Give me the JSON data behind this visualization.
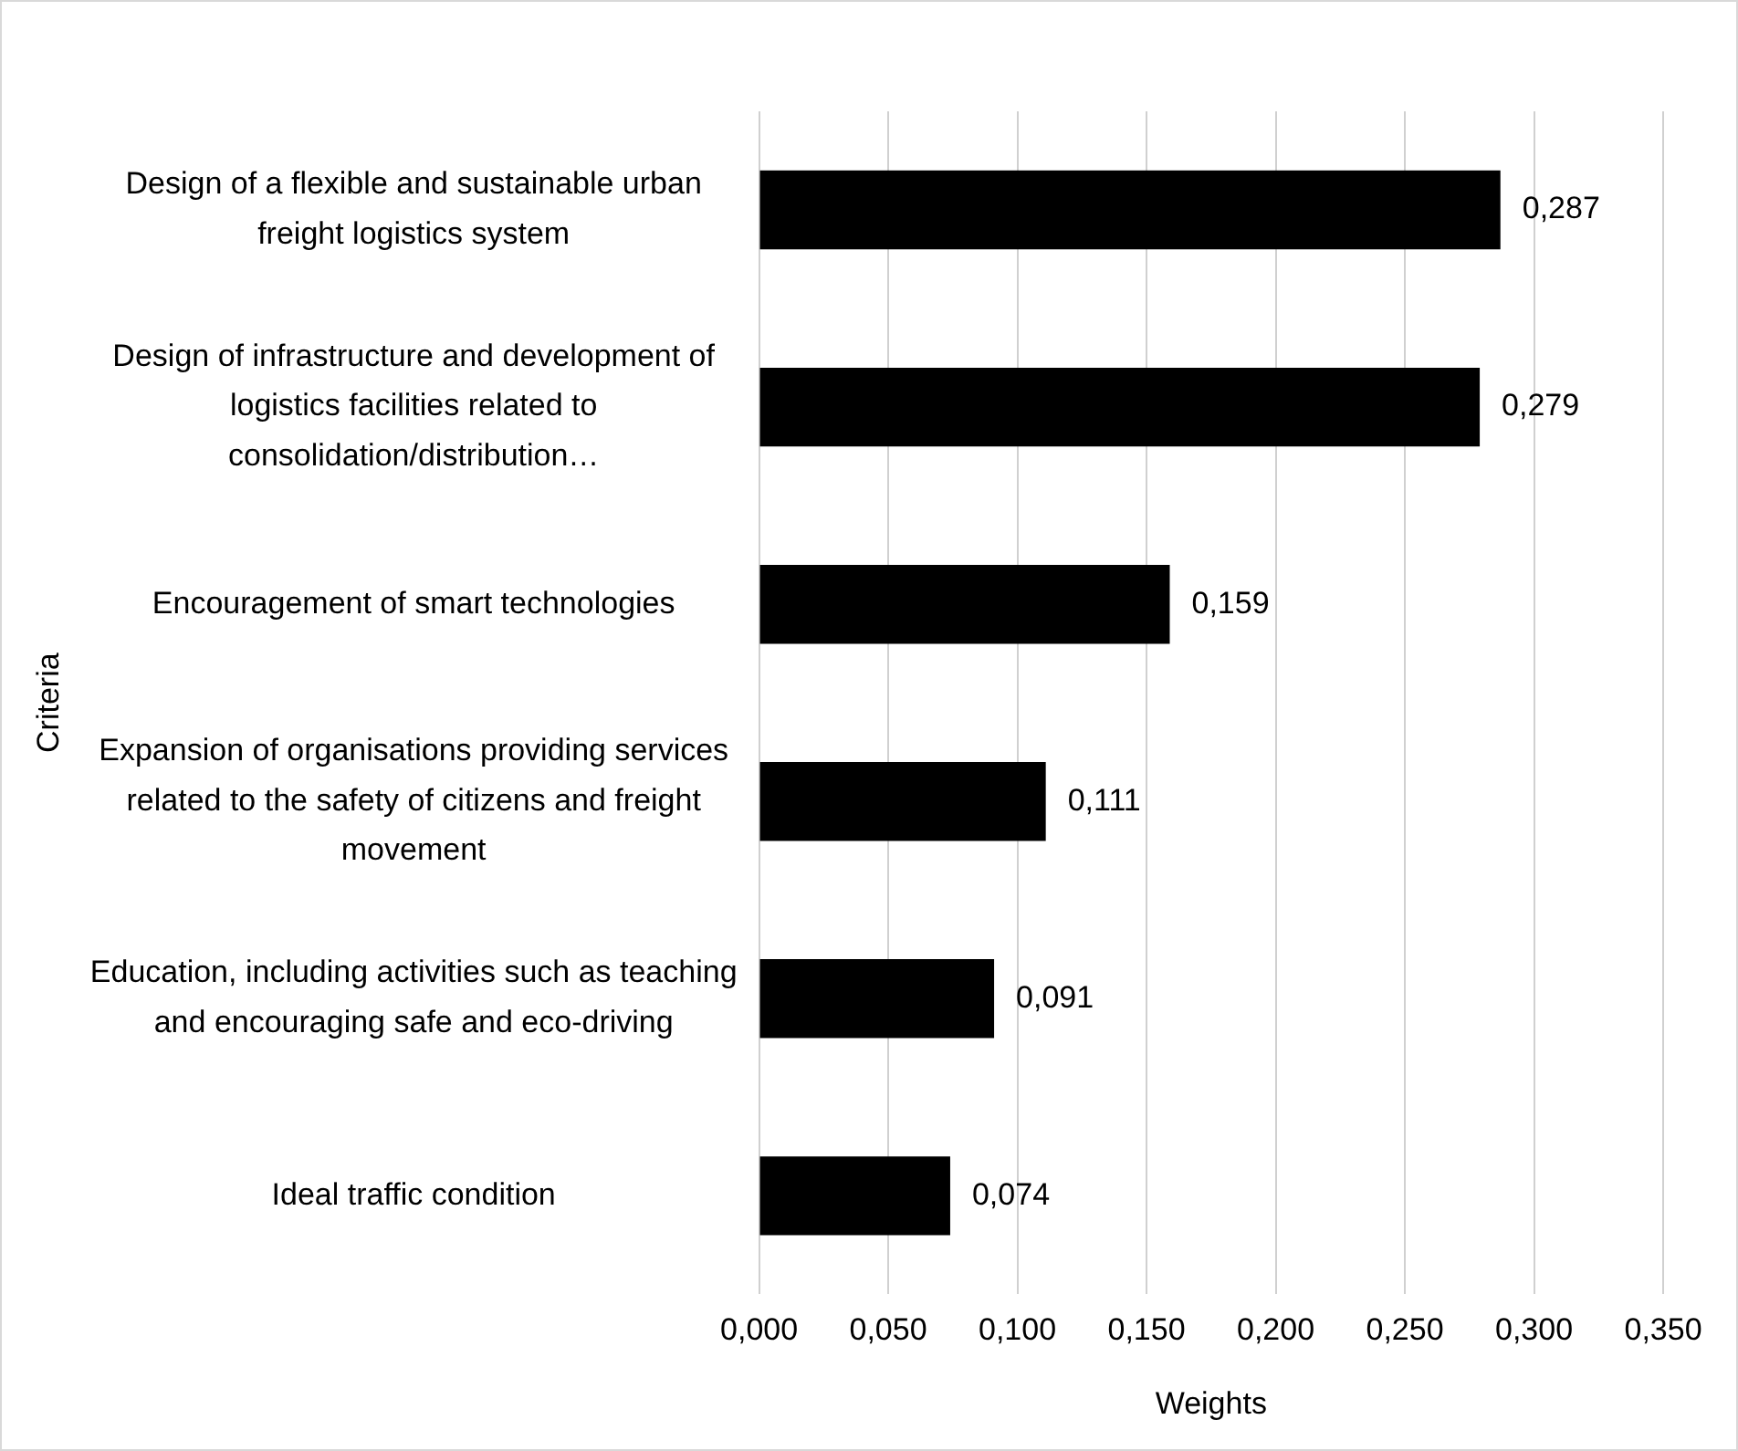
{
  "chart_data": {
    "type": "bar",
    "orientation": "horizontal",
    "xlabel": "Weights",
    "ylabel": "Criteria",
    "categories": [
      "Design of a flexible and sustainable urban freight logistics system",
      "Design of infrastructure and development of logistics facilities related to consolidation/distribution…",
      "Encouragement of smart technologies",
      "Expansion of organisations providing services related to the safety of citizens and freight movement",
      "Education, including activities such as teaching and encouraging safe and eco-driving",
      "Ideal traffic condition"
    ],
    "values": [
      0.287,
      0.279,
      0.159,
      0.111,
      0.091,
      0.074
    ],
    "value_labels": [
      "0,287",
      "0,279",
      "0,159",
      "0,111",
      "0,091",
      "0,074"
    ],
    "color": "#000000",
    "xlim": [
      0,
      0.35
    ],
    "xticks": [
      {
        "value": 0,
        "label": "0,000"
      },
      {
        "value": 0.05,
        "label": "0,050"
      },
      {
        "value": 0.1,
        "label": "0,100"
      },
      {
        "value": 0.15,
        "label": "0,150"
      },
      {
        "value": 0.2,
        "label": "0,200"
      },
      {
        "value": 0.25,
        "label": "0,250"
      },
      {
        "value": 0.3,
        "label": "0,300"
      },
      {
        "value": 0.35,
        "label": "0,350"
      }
    ],
    "grid": "x",
    "legend": false
  }
}
